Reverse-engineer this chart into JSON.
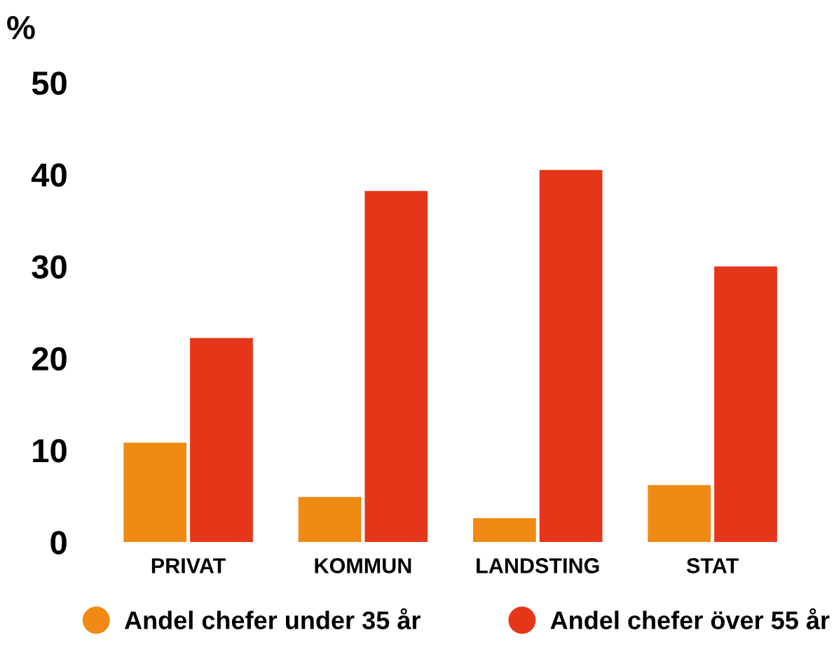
{
  "chart_data": {
    "type": "bar",
    "ylabel": "%",
    "categories": [
      "PRIVAT",
      "KOMMUN",
      "LANDSTING",
      "STAT"
    ],
    "series": [
      {
        "name": "Andel chefer under 35 år",
        "color": "#f08a12",
        "values": [
          10.8,
          4.9,
          2.6,
          6.2
        ]
      },
      {
        "name": "Andel chefer över 55 år",
        "color": "#e6361a",
        "values": [
          22.2,
          38.2,
          40.5,
          30.0
        ]
      }
    ],
    "ylim": [
      0,
      50
    ],
    "yticks": [
      0,
      10,
      20,
      30,
      40,
      50
    ],
    "grid": false,
    "legend": "bottom"
  }
}
